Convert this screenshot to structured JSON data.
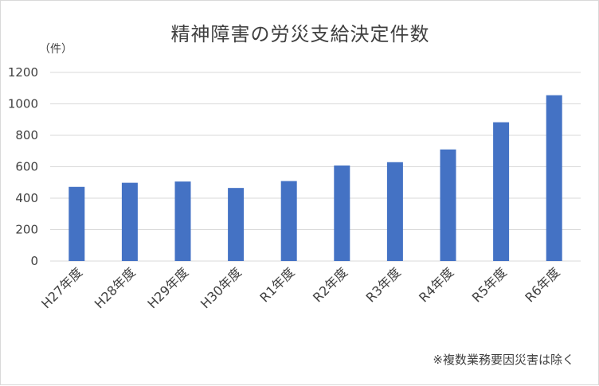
{
  "unit_label": "（件）",
  "footnote": "※複数業務要因災害は除く",
  "colors": {
    "bar": "#4472c4",
    "grid": "#d9d9d9",
    "text": "#404040"
  },
  "chart_data": {
    "type": "bar",
    "title": "精神障害の労災支給決定件数",
    "xlabel": "",
    "ylabel": "",
    "categories": [
      "H27年度",
      "H28年度",
      "H29年度",
      "H30年度",
      "R1年度",
      "R2年度",
      "R3年度",
      "R4年度",
      "R5年度",
      "R6年度"
    ],
    "values": [
      472,
      498,
      506,
      465,
      509,
      608,
      629,
      710,
      883,
      1055
    ],
    "ylim": [
      0,
      1200
    ],
    "yticks": [
      0,
      200,
      400,
      600,
      800,
      1000,
      1200
    ],
    "grid": true,
    "legend": "none"
  }
}
